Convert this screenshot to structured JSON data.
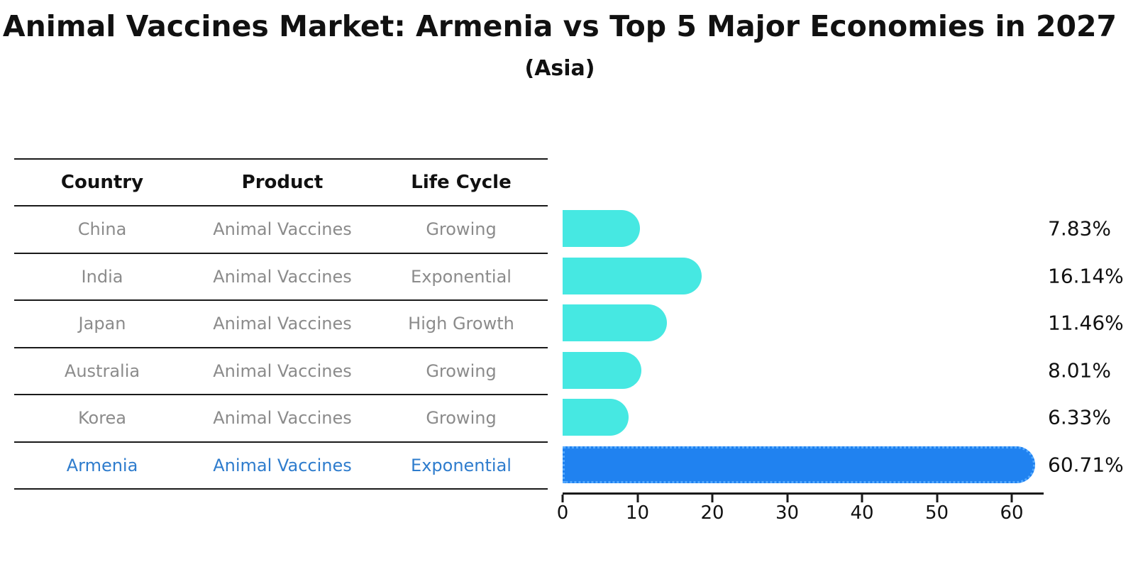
{
  "title": "Animal Vaccines Market: Armenia vs Top 5 Major Economies in 2027",
  "subtitle": "(Asia)",
  "table": {
    "headers": [
      "Country",
      "Product",
      "Life Cycle"
    ],
    "rows": [
      {
        "country": "China",
        "product": "Animal Vaccines",
        "life_cycle": "Growing",
        "highlight": false
      },
      {
        "country": "India",
        "product": "Animal Vaccines",
        "life_cycle": "Exponential",
        "highlight": false
      },
      {
        "country": "Japan",
        "product": "Animal Vaccines",
        "life_cycle": "High Growth",
        "highlight": false
      },
      {
        "country": "Australia",
        "product": "Animal Vaccines",
        "life_cycle": "Growing",
        "highlight": false
      },
      {
        "country": "Korea",
        "product": "Animal Vaccines",
        "life_cycle": "Growing",
        "highlight": false
      },
      {
        "country": "Armenia",
        "product": "Animal Vaccines",
        "life_cycle": "Exponential",
        "highlight": true
      }
    ]
  },
  "chart_data": {
    "type": "bar",
    "orientation": "horizontal",
    "title": "Animal Vaccines Market: Armenia vs Top 5 Major Economies in 2027",
    "subtitle": "(Asia)",
    "categories": [
      "China",
      "India",
      "Japan",
      "Australia",
      "Korea",
      "Armenia"
    ],
    "values": [
      7.83,
      16.14,
      11.46,
      8.01,
      6.33,
      60.71
    ],
    "value_labels": [
      "7.83%",
      "16.14%",
      "11.46%",
      "8.01%",
      "6.33%",
      "60.71%"
    ],
    "x_ticks": [
      0,
      10,
      20,
      30,
      40,
      50,
      60
    ],
    "xlim": [
      0,
      64.3
    ],
    "grid": false,
    "legend": "none",
    "highlight_index": 5,
    "bar_color": "#46e8e2",
    "highlight_bar_color": "#2082f0",
    "highlight_edge_color": "#55aaff",
    "highlight_text_color": "#2e7ccd",
    "table_text_color": "#8b8b8b",
    "axis_color": "#1a1a1a"
  }
}
